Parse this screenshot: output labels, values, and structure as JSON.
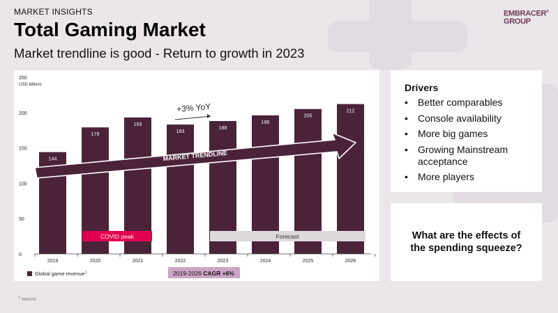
{
  "header": {
    "kicker": "MARKET INSIGHTS",
    "title": "Total Gaming Market",
    "subtitle": "Market trendline is good - Return to growth in 2023"
  },
  "logo": {
    "line1": "EMBRACER",
    "line2": "GROUP",
    "mark": "®"
  },
  "chart_data": {
    "type": "bar",
    "categories": [
      "2019",
      "2020",
      "2021",
      "2022",
      "2023",
      "2024",
      "2025",
      "2026"
    ],
    "values": [
      144,
      179,
      193,
      183,
      188,
      196,
      205,
      212
    ],
    "ylim": [
      0,
      250
    ],
    "yticks": [
      0,
      50,
      100,
      150,
      200,
      250
    ],
    "ylabel": "USD billions",
    "bar_color": "#4b2339",
    "legend": {
      "label": "Global game revenue",
      "sup": "1",
      "placement": "bottom-left"
    },
    "annotations": {
      "yoy": "+3% YoY",
      "trendline": "MARKET TRENDLINE",
      "covid": "COVID peak",
      "forecast": "Forecast",
      "cagr_prefix": "2019-2026 ",
      "cagr_bold": "CAGR +6%"
    },
    "colors": {
      "covid": "#e1004f",
      "forecast": "#ddd8dc",
      "cagr": "#cda4c3"
    }
  },
  "drivers": {
    "title": "Drivers",
    "items": [
      "Better comparables",
      "Console availability",
      "More big games",
      "Growing Mainstream acceptance",
      "More players"
    ]
  },
  "question": "What are the effects of the spending squeeze?",
  "footnote": {
    "sup": "1",
    "text": "Newzoo"
  }
}
